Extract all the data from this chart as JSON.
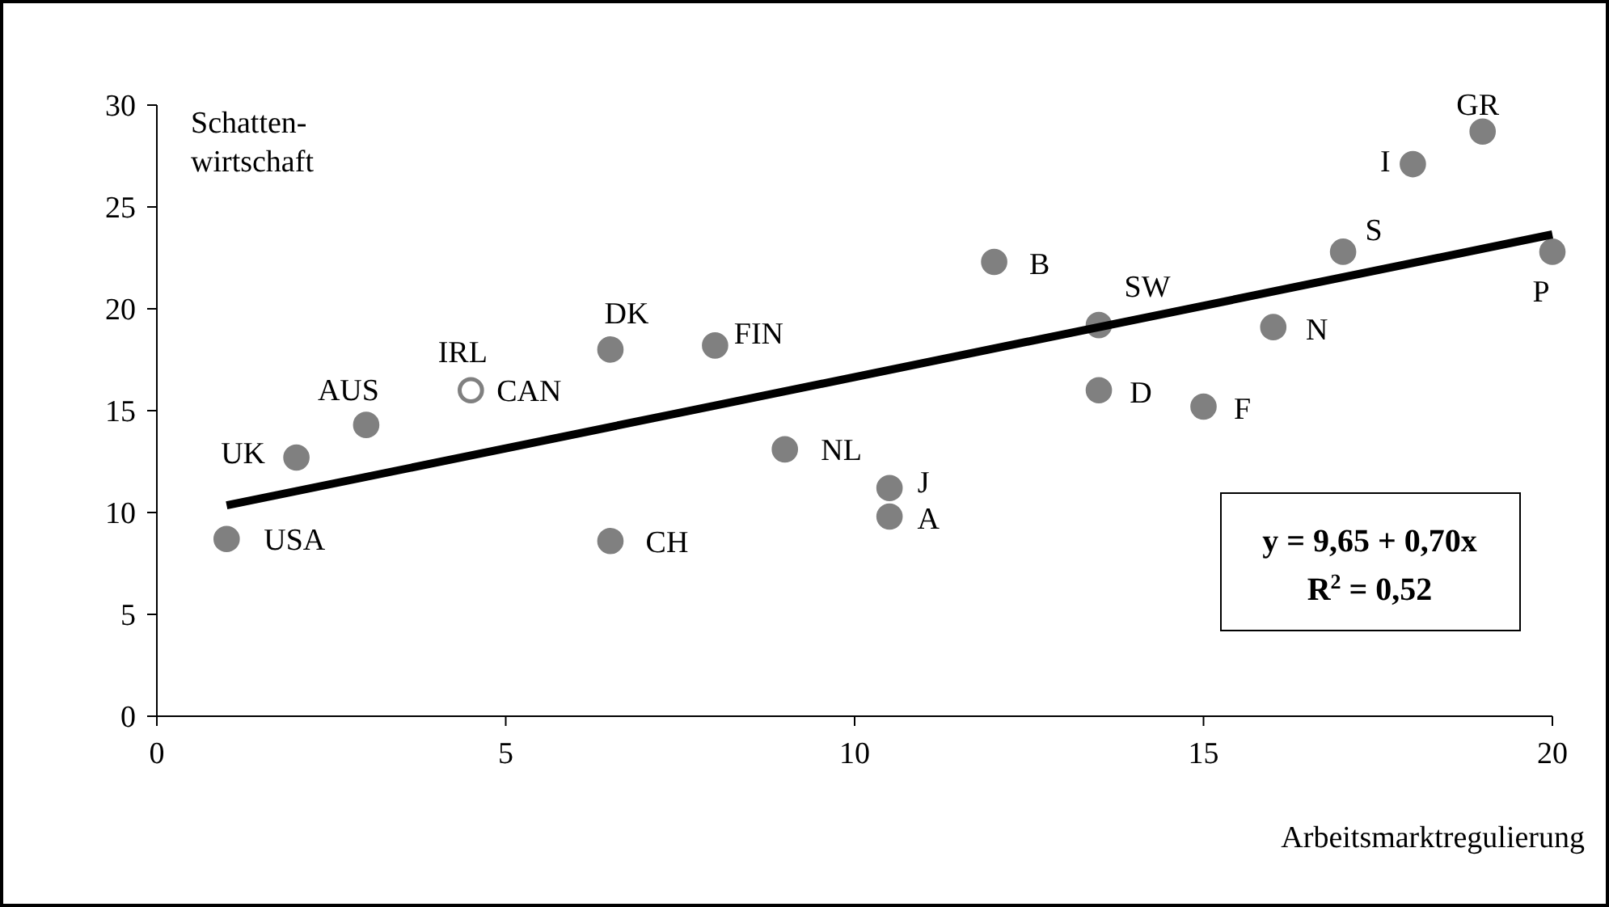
{
  "chart_data": {
    "type": "scatter",
    "xlabel": "Arbeitsmarktregulierung",
    "ylabel": "Schatten-wirtschaft",
    "xlim": [
      0,
      20
    ],
    "xticks": [
      0,
      5,
      10,
      15,
      20
    ],
    "ylim": [
      0,
      30
    ],
    "yticks": [
      0,
      5,
      10,
      15,
      20,
      25,
      30
    ],
    "grid": false,
    "marker": "circle",
    "series": [
      {
        "color": "#808080",
        "x": [
          1,
          2,
          3,
          6.5,
          6.5,
          8,
          9,
          10.5,
          10.5,
          12,
          13.5,
          13.5,
          15,
          16,
          17,
          18,
          19,
          20
        ],
        "values": [
          8.7,
          12.7,
          14.3,
          18,
          8.6,
          18.2,
          13.1,
          11.2,
          9.8,
          22.3,
          19.2,
          16,
          15.2,
          19.1,
          22.8,
          27.1,
          28.7,
          22.8
        ]
      },
      {
        "color": "#ffffff",
        "x": [
          4.5
        ],
        "values": [
          16
        ]
      },
      {
        "type": "line",
        "color": "#000000",
        "marker": "none",
        "x": [
          1,
          20
        ],
        "values": [
          10.35,
          23.65
        ]
      }
    ],
    "annotations": [
      {
        "text": "USA",
        "x": 1,
        "y": 8.7
      },
      {
        "text": "UK",
        "x": 2,
        "y": 12.7
      },
      {
        "text": "AUS",
        "x": 3,
        "y": 14.3
      },
      {
        "text": "IRL",
        "x": 4.5,
        "y": 16
      },
      {
        "text": "CAN",
        "x": 4.5,
        "y": 16
      },
      {
        "text": "DK",
        "x": 6.5,
        "y": 18
      },
      {
        "text": "FIN",
        "x": 8,
        "y": 18.2
      },
      {
        "text": "CH",
        "x": 6.5,
        "y": 8.6
      },
      {
        "text": "NL",
        "x": 9,
        "y": 13.1
      },
      {
        "text": "J",
        "x": 10.5,
        "y": 11.2
      },
      {
        "text": "A",
        "x": 10.5,
        "y": 9.8
      },
      {
        "text": "B",
        "x": 12,
        "y": 22.3
      },
      {
        "text": "SW",
        "x": 13.5,
        "y": 19.2
      },
      {
        "text": "D",
        "x": 13.5,
        "y": 16
      },
      {
        "text": "F",
        "x": 15,
        "y": 15.2
      },
      {
        "text": "N",
        "x": 16,
        "y": 19.1
      },
      {
        "text": "S",
        "x": 17,
        "y": 22.8
      },
      {
        "text": "I",
        "x": 18,
        "y": 27.1
      },
      {
        "text": "GR",
        "x": 19,
        "y": 28.7
      },
      {
        "text": "P",
        "x": 20,
        "y": 22.8
      },
      "y = 9,65 + 0,70x",
      "R$^{2}$ = 0,52"
    ]
  }
}
